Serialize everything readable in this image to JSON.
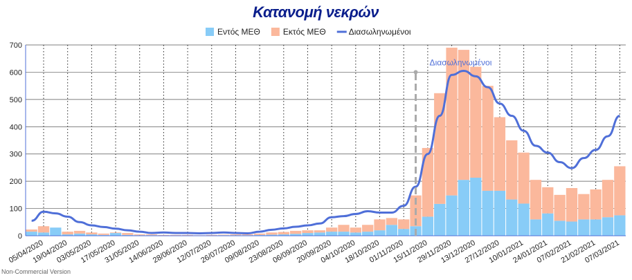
{
  "chart_data": {
    "type": "stacked_bar_line",
    "title": "Κατανομή νεκρών",
    "footer": "Non-Commercial Version",
    "categories": [
      null,
      "05/04/2020",
      null,
      "19/04/2020",
      null,
      "03/05/2020",
      null,
      "17/05/2020",
      null,
      "31/05/2020",
      null,
      "14/06/2020",
      null,
      "28/06/2020",
      null,
      "12/07/2020",
      null,
      "26/07/2020",
      null,
      "09/08/2020",
      null,
      "23/08/2020",
      null,
      "06/09/2020",
      null,
      "20/09/2020",
      null,
      "04/10/2020",
      null,
      "18/10/2020",
      null,
      "01/11/2020",
      null,
      "15/11/2020",
      null,
      "29/11/2020",
      null,
      "13/12/2020",
      null,
      "27/12/2020",
      null,
      "10/01/2021",
      null,
      "24/01/2021",
      null,
      "07/02/2021",
      null,
      "21/02/2021",
      null,
      "07/03/2021"
    ],
    "series": [
      {
        "name": "Εντός ΜΕΘ",
        "color": "#88ccf7",
        "kind": "bar",
        "values": [
          15,
          12,
          30,
          5,
          8,
          5,
          3,
          10,
          3,
          2,
          2,
          1,
          1,
          1,
          1,
          1,
          2,
          2,
          2,
          3,
          4,
          5,
          7,
          10,
          12,
          15,
          15,
          12,
          15,
          20,
          40,
          25,
          35,
          70,
          117,
          148,
          205,
          213,
          165,
          165,
          133,
          118,
          60,
          82,
          55,
          52,
          60,
          60,
          68,
          75
        ]
      },
      {
        "name": "Εκτός ΜΕΘ",
        "color": "#fbb89c",
        "kind": "bar",
        "values": [
          8,
          23,
          0,
          10,
          10,
          7,
          5,
          2,
          7,
          3,
          3,
          2,
          2,
          2,
          1,
          2,
          2,
          3,
          3,
          5,
          8,
          9,
          11,
          10,
          8,
          15,
          25,
          18,
          25,
          40,
          25,
          35,
          113,
          252,
          406,
          542,
          477,
          407,
          385,
          270,
          217,
          187,
          145,
          96,
          95,
          123,
          93,
          110,
          137,
          180
        ]
      },
      {
        "name": "Διασωληνωμένοι",
        "color": "#4f6fd8",
        "kind": "line",
        "values": [
          55,
          88,
          82,
          70,
          50,
          38,
          32,
          26,
          20,
          15,
          10,
          12,
          10,
          10,
          9,
          10,
          12,
          10,
          9,
          15,
          22,
          27,
          33,
          38,
          45,
          68,
          72,
          80,
          90,
          85,
          85,
          110,
          180,
          300,
          440,
          590,
          605,
          585,
          545,
          485,
          440,
          385,
          330,
          305,
          270,
          248,
          285,
          315,
          365,
          440
        ]
      }
    ],
    "annotation": {
      "text": "Διασωληνωμένοι",
      "category_index": 32,
      "value": 600
    },
    "ylim": [
      0,
      700
    ],
    "yticks": [
      0,
      100,
      200,
      300,
      400,
      500,
      600,
      700
    ],
    "grid": true
  }
}
